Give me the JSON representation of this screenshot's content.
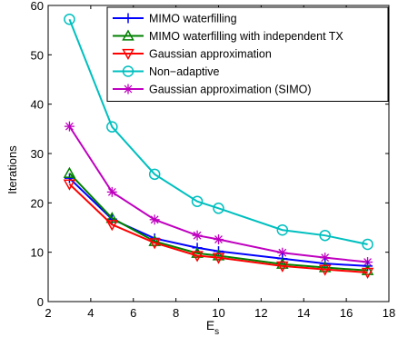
{
  "chart_data": {
    "type": "line",
    "title": "",
    "xlabel": "E",
    "xlabel_subscript": "s",
    "ylabel": "Iterations",
    "xlim": [
      2,
      18
    ],
    "ylim": [
      0,
      60
    ],
    "xticks": [
      2,
      4,
      6,
      8,
      10,
      12,
      14,
      16,
      18
    ],
    "yticks": [
      0,
      10,
      20,
      30,
      40,
      50,
      60
    ],
    "grid": false,
    "legend_position": "top-right",
    "series": [
      {
        "name": "MIMO waterfilling",
        "color": "#0000ff",
        "marker": "plus",
        "x": [
          3,
          5,
          7,
          9,
          10,
          13,
          15,
          17
        ],
        "y": [
          25,
          16.7,
          12.8,
          10.9,
          10.2,
          8.7,
          7.7,
          7.2
        ]
      },
      {
        "name": "MIMO waterfilling with independent TX",
        "color": "#008000",
        "marker": "triangle-up",
        "x": [
          3,
          5,
          7,
          9,
          10,
          13,
          15,
          17
        ],
        "y": [
          26,
          16.9,
          12.2,
          9.8,
          9.3,
          7.6,
          6.9,
          6.3
        ]
      },
      {
        "name": "Gaussian approximation",
        "color": "#ff0000",
        "marker": "triangle-down",
        "x": [
          3,
          5,
          7,
          9,
          10,
          13,
          15,
          17
        ],
        "y": [
          23.8,
          15.6,
          11.9,
          9.3,
          8.9,
          7.2,
          6.5,
          5.9
        ]
      },
      {
        "name": "Non−adaptive",
        "color": "#00bfbf",
        "marker": "circle",
        "x": [
          3,
          5,
          7,
          9,
          10,
          13,
          15,
          17
        ],
        "y": [
          57.2,
          35.4,
          25.8,
          20.3,
          18.9,
          14.5,
          13.4,
          11.6
        ]
      },
      {
        "name": "Gaussian approximation (SIMO)",
        "color": "#bf00bf",
        "marker": "asterisk",
        "x": [
          3,
          5,
          7,
          9,
          10,
          13,
          15,
          17
        ],
        "y": [
          35.5,
          22.2,
          16.6,
          13.4,
          12.6,
          9.9,
          8.9,
          8.0
        ]
      }
    ]
  }
}
